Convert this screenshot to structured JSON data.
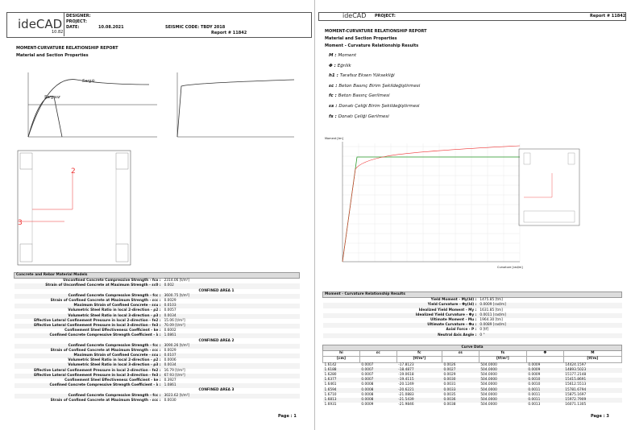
{
  "page1": {
    "header": {
      "logo": "ideCAD",
      "version": "10.82",
      "designer": "DESIGNER:",
      "project": "PROJECT:",
      "date_label": "DATE:",
      "date": "10.08.2021",
      "seismic_code": "SEISMIC CODE: TBDY 2018",
      "report": "Report # 11842"
    },
    "title": "MOMENT-CURVATURE RELATIONSHIP REPORT",
    "subtitle": "Material and Section Properties",
    "graph": {
      "confined": "Sargılı",
      "unconfined": "Sargısız"
    },
    "section_labels": [
      "2",
      "3"
    ],
    "table": {
      "title": "Concrete and Rebar Material Models",
      "rows": [
        [
          "Unconfined Concrete Compressive Strength - fco :",
          "2314.06 [t/m²]"
        ],
        [
          "Strain of Unconfined Concrete at Maximum Strength - εc0 :",
          "0.002"
        ],
        [
          "CONFINED AREA 1"
        ],
        [
          "Confined Concrete Compressive Strength - fcc :",
          "3600.75 [t/m²]"
        ],
        [
          "Strain of Confined Concrete at Maximum Strength - εcc :",
          "0.0029"
        ],
        [
          "Maximum Strain of Confined Concrete - εcu :",
          "0.0103"
        ],
        [
          "Volumetric Steel Ratio in local 2-direction - ρ2 :",
          "0.0057"
        ],
        [
          "Volumetric Steel Ratio in local 3-direction - ρ3 :",
          "0.0034"
        ],
        [
          "Effective Lateral Confinement Pressure in local 2-direction - fe2 :",
          "15.06 [t/m²]"
        ],
        [
          "Effective Lateral Confinement Pressure in local 3-direction - fe3 :",
          "70.09 [t/m²]"
        ],
        [
          "Confinement Steel Effectiveness Coefficient - ke :",
          "0.6002"
        ],
        [
          "Confined Concrete Compressive Strength Coefficient - λ :",
          "1.0861"
        ],
        [
          "CONFINED AREA 2"
        ],
        [
          "Confined Concrete Compressive Strength - fcc :",
          "3090.26 [t/m²]"
        ],
        [
          "Strain of Confined Concrete at Maximum Strength - εcc :",
          "0.0029"
        ],
        [
          "Maximum Strain of Confined Concrete - εcu :",
          "0.0107"
        ],
        [
          "Volumetric Steel Ratio in local 2-direction - ρ2 :",
          "0.0006"
        ],
        [
          "Volumetric Steel Ratio in local 3-direction - ρ3 :",
          "0.0034"
        ],
        [
          "Effective Lateral Confinement Pressure in local 2-direction - fe2 :",
          "16.79 [t/m²]"
        ],
        [
          "Effective Lateral Confinement Pressure in local 3-direction - fe3 :",
          "67.93 [t/m²]"
        ],
        [
          "Confinement Steel Effectiveness Coefficient - ke :",
          "0.3927"
        ],
        [
          "Confined Concrete Compressive Strength Coefficient - λ :",
          "1.0861"
        ],
        [
          "CONFINED AREA 3"
        ],
        [
          "Confined Concrete Compressive Strength - fcc :",
          "3023.62 [t/m²]"
        ],
        [
          "Strain of Confined Concrete at Maximum Strength - εcc :",
          "0.0030"
        ]
      ]
    },
    "footer": "Page : 1"
  },
  "page3": {
    "header": {
      "logo": "ideCAD",
      "project": "PROJECT:",
      "report": "Report # 11842"
    },
    "title": "MOMENT-CURVATURE RELATIONSHIP REPORT",
    "subtitle": "Material and Section Properties",
    "subtitle2": "Moment - Curvature Relationship Results",
    "legend": [
      [
        "M",
        "Moment"
      ],
      [
        "Φ",
        "Eğrilik"
      ],
      [
        "h1",
        "Tarafsız Eksen Yüksekliği"
      ],
      [
        "εc",
        "Beton Basınç Birim Şekildeğiştirmesi"
      ],
      [
        "fc",
        "Beton Basınç Gerilmesi"
      ],
      [
        "εs",
        "Donatı Çeliği Birim Şekildeğiştirmesi"
      ],
      [
        "fs",
        "Donatı Çeliği Gerilmesi"
      ]
    ],
    "chart": {
      "y_label": "Moment [tm]",
      "x_label": "Curvature [rad/m]"
    },
    "results": {
      "title": "Moment - Curvature Relationship Results",
      "rows": [
        [
          "Yield Moment - My(ld) :",
          "1475.85 [tm]"
        ],
        [
          "Yield Curvature - Φy(ld) :",
          "0.0009 [rad/m]"
        ],
        [
          "Idealized Yield Moment - My :",
          "1631.85 [tm]"
        ],
        [
          "Idealized Yield Curvature - Φy :",
          "0.0011 [rad/m]"
        ],
        [
          "Ultimate Moment - Mu :",
          "1964.30 [tm]"
        ],
        [
          "Ultimate Curvature - Φu :",
          "0.0089 [rad/m]"
        ],
        [
          "Axial Force - P :",
          "0 [tf]"
        ],
        [
          "Neutral Axis Angle :",
          "0 °"
        ]
      ]
    },
    "curve": {
      "title": "Curve Data",
      "headers": [
        "hi",
        "εc",
        "fc",
        "εs",
        "fs",
        "Φ",
        "M"
      ],
      "units": [
        "[cm]",
        "",
        "[tf/m²]",
        "",
        "[tf/m²]",
        "",
        "[tf/m]"
      ],
      "rows": [
        [
          "1.6142",
          "0.0007",
          "-17.8123",
          "0.0026",
          "504.0000",
          "0.0009",
          "14424.1597"
        ],
        [
          "1.6188",
          "0.0007",
          "-18.4877",
          "0.0027",
          "504.0000",
          "0.0009",
          "14893.5023"
        ],
        [
          "1.6280",
          "0.0007",
          "-19.0618",
          "0.0029",
          "504.0000",
          "0.0009",
          "15177.2148"
        ],
        [
          "1.6377",
          "0.0007",
          "-19.4115",
          "0.0030",
          "504.0000",
          "0.0010",
          "15415.8691"
        ],
        [
          "1.6461",
          "0.0008",
          "-20.1249",
          "0.0031",
          "504.0000",
          "0.0010",
          "15612.5513"
        ],
        [
          "1.6594",
          "0.0008",
          "-20.6221",
          "0.0033",
          "504.0000",
          "0.0011",
          "15781.6794"
        ],
        [
          "1.6710",
          "0.0008",
          "-21.0883",
          "0.0035",
          "504.0000",
          "0.0011",
          "15875.1697"
        ],
        [
          "1.6813",
          "0.0008",
          "-21.5439",
          "0.0036",
          "504.0000",
          "0.0011",
          "15972.7909"
        ],
        [
          "1.6931",
          "0.0009",
          "-21.9846",
          "0.0038",
          "504.0000",
          "0.0013",
          "16071.1305"
        ]
      ]
    },
    "footer": "Page : 3"
  }
}
